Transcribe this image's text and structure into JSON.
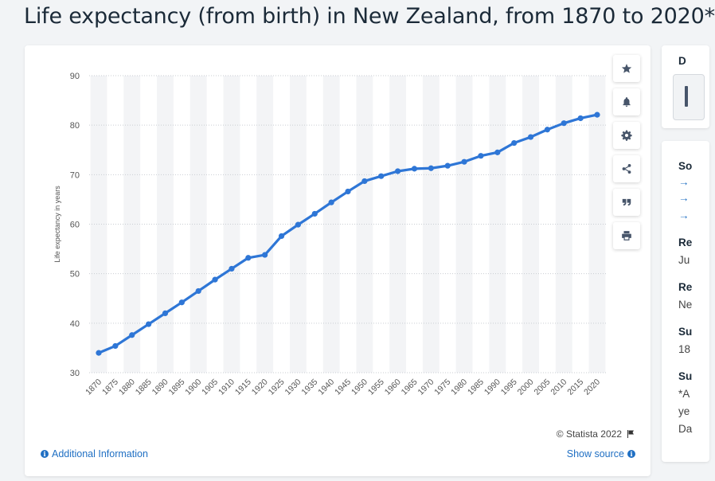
{
  "title": "Life expectancy (from birth) in New Zealand, from 1870 to 2020*",
  "chart_data": {
    "type": "line",
    "xlabel": "",
    "ylabel": "Life expectancy in years",
    "ylim": [
      30,
      90
    ],
    "yticks": [
      30,
      40,
      50,
      60,
      70,
      80,
      90
    ],
    "grid": true,
    "categories": [
      "1870",
      "1875",
      "1880",
      "1885",
      "1890",
      "1895",
      "1900",
      "1905",
      "1910",
      "1915",
      "1920",
      "1925",
      "1930",
      "1935",
      "1940",
      "1945",
      "1950",
      "1955",
      "1960",
      "1965",
      "1970",
      "1975",
      "1980",
      "1985",
      "1990",
      "1995",
      "2000",
      "2005",
      "2010",
      "2015",
      "2020"
    ],
    "series": [
      {
        "values": [
          34.0,
          35.4,
          37.6,
          39.8,
          42.0,
          44.2,
          46.5,
          48.8,
          51.0,
          53.2,
          53.8,
          57.6,
          59.9,
          62.1,
          64.4,
          66.6,
          68.7,
          69.7,
          70.7,
          71.2,
          71.3,
          71.8,
          72.6,
          73.8,
          74.5,
          76.4,
          77.6,
          79.1,
          80.4,
          81.4,
          82.1
        ]
      }
    ],
    "color": "#2e76d6"
  },
  "toolbar": {
    "icons": [
      "star-icon",
      "bell-icon",
      "gear-icon",
      "share-icon",
      "quote-icon",
      "print-icon"
    ]
  },
  "footer": {
    "credit": "© Statista 2022",
    "additional_info": "Additional Information",
    "show_source": "Show source"
  },
  "side": {
    "top_fragment": "D",
    "sections": [
      {
        "heading": "So",
        "text": ""
      },
      {
        "heading": "Re",
        "text": "Ju"
      },
      {
        "heading": "Re",
        "text": "Ne"
      },
      {
        "heading": "Su",
        "text": "18"
      },
      {
        "heading": "Su",
        "text": "*A",
        "text2": "ye",
        "text3": "Da"
      }
    ]
  }
}
